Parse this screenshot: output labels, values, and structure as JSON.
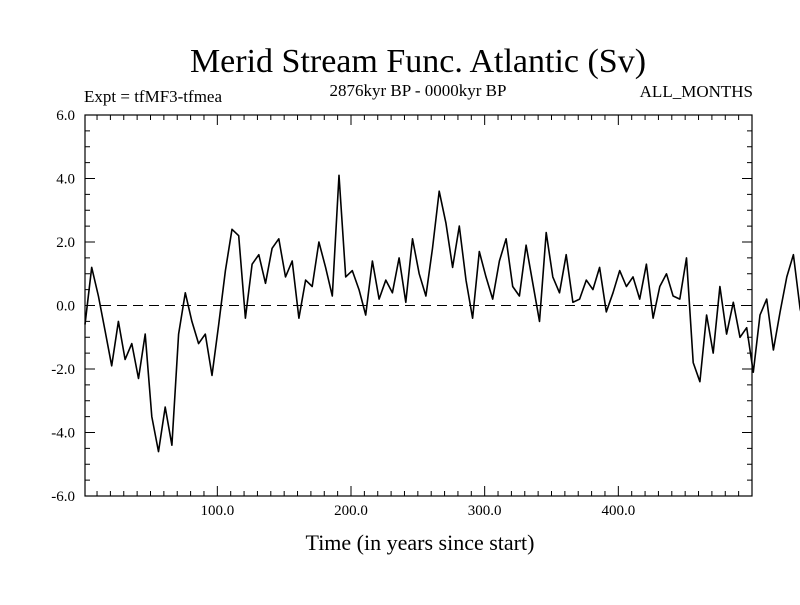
{
  "chart_data": {
    "type": "line",
    "title": "Merid Stream Func. Atlantic (Sv)",
    "subtitle_left": "Expt = tfMF3-tfmea",
    "subtitle_center": "2876kyr BP - 0000kyr BP",
    "subtitle_right": "ALL_MONTHS",
    "xlabel": "Time (in years since start)",
    "ylabel": "",
    "xlim": [
      1,
      500
    ],
    "ylim": [
      -6.0,
      6.0
    ],
    "x_ticks": [
      100,
      200,
      300,
      400
    ],
    "x_tick_labels": [
      "100.0",
      "200.0",
      "300.0",
      "400.0"
    ],
    "y_ticks": [
      -6,
      -4,
      -2,
      0,
      2,
      4,
      6
    ],
    "y_tick_labels": [
      "-6.0",
      "-4.0",
      "-2.0",
      "0.0",
      "2.0",
      "4.0",
      "6.0"
    ],
    "reference_line": {
      "y": 0.0,
      "style": "dashed"
    },
    "series": [
      {
        "name": "Atlantic MOC anomaly",
        "x_start": 1,
        "x_step": 5,
        "values": [
          -0.6,
          1.2,
          0.3,
          -0.8,
          -1.9,
          -0.5,
          -1.7,
          -1.2,
          -2.3,
          -0.9,
          -3.5,
          -4.6,
          -3.2,
          -4.4,
          -0.9,
          0.4,
          -0.5,
          -1.2,
          -0.9,
          -2.2,
          -0.6,
          1.1,
          2.4,
          2.2,
          -0.4,
          1.3,
          1.6,
          0.7,
          1.8,
          2.1,
          0.9,
          1.4,
          -0.4,
          0.8,
          0.6,
          2.0,
          1.2,
          0.3,
          4.1,
          0.9,
          1.1,
          0.5,
          -0.3,
          1.4,
          0.2,
          0.8,
          0.4,
          1.5,
          0.1,
          2.1,
          1.0,
          0.3,
          1.8,
          3.6,
          2.6,
          1.2,
          2.5,
          0.8,
          -0.4,
          1.7,
          0.9,
          0.2,
          1.4,
          2.1,
          0.6,
          0.3,
          1.9,
          0.7,
          -0.5,
          2.3,
          0.9,
          0.4,
          1.6,
          0.1,
          0.2,
          0.8,
          0.5,
          1.2,
          -0.2,
          0.4,
          1.1,
          0.6,
          0.9,
          0.2,
          1.3,
          -0.4,
          0.6,
          1.0,
          0.3,
          0.2,
          1.5,
          -1.8,
          -2.4,
          -0.3,
          -1.5,
          0.6,
          -0.9,
          0.1,
          -1.0,
          -0.7,
          -2.1,
          -0.3,
          0.2,
          -1.4,
          -0.2,
          0.9,
          1.6,
          -0.1,
          -1.0,
          0.7,
          0.4,
          1.2,
          -0.5,
          0.5,
          1.1,
          0.9,
          0.8,
          0.2,
          1.7,
          0.4,
          -1.9,
          -0.5,
          0.4,
          0.9,
          0.8,
          1.8,
          0.9,
          1.1,
          0.5,
          -0.8,
          1.6,
          2.2,
          0.7,
          1.5,
          1.1,
          0.3,
          -0.9,
          1.6,
          0.1,
          0.4,
          1.4,
          2.0,
          1.8,
          3.3,
          2.0,
          4.1,
          3.2,
          5.4,
          2.9,
          1.2,
          3.3,
          1.5,
          2.5,
          2.0,
          3.0,
          1.8,
          2.6,
          3.2,
          2.4,
          4.6,
          3.8,
          3.3,
          4.1,
          2.1,
          2.9,
          1.1,
          0.7,
          -0.8,
          1.9,
          -0.5,
          0.2,
          -0.9,
          -1.6,
          0.6,
          -1.1,
          -0.3,
          -1.8,
          -1.0,
          -0.5,
          -2.4,
          -0.7,
          0.5,
          -1.1,
          0.2,
          -0.8,
          -1.5,
          0.9,
          -0.4,
          0.8,
          -0.6,
          -1.3,
          0.4,
          0.9,
          -0.8,
          0.6,
          0.2,
          -2.5,
          -0.3,
          0.8,
          -1.2,
          0.5,
          0.2,
          -1.4,
          0.7,
          0.9,
          -0.2,
          -1.1,
          0.4,
          -0.6,
          0.5,
          -0.2,
          0.9,
          0.6,
          0.4,
          1.8,
          1.2,
          2.1,
          0.3,
          0.8,
          0.5,
          1.3,
          0.4,
          2.2,
          0.6,
          1.9
        ]
      }
    ]
  }
}
